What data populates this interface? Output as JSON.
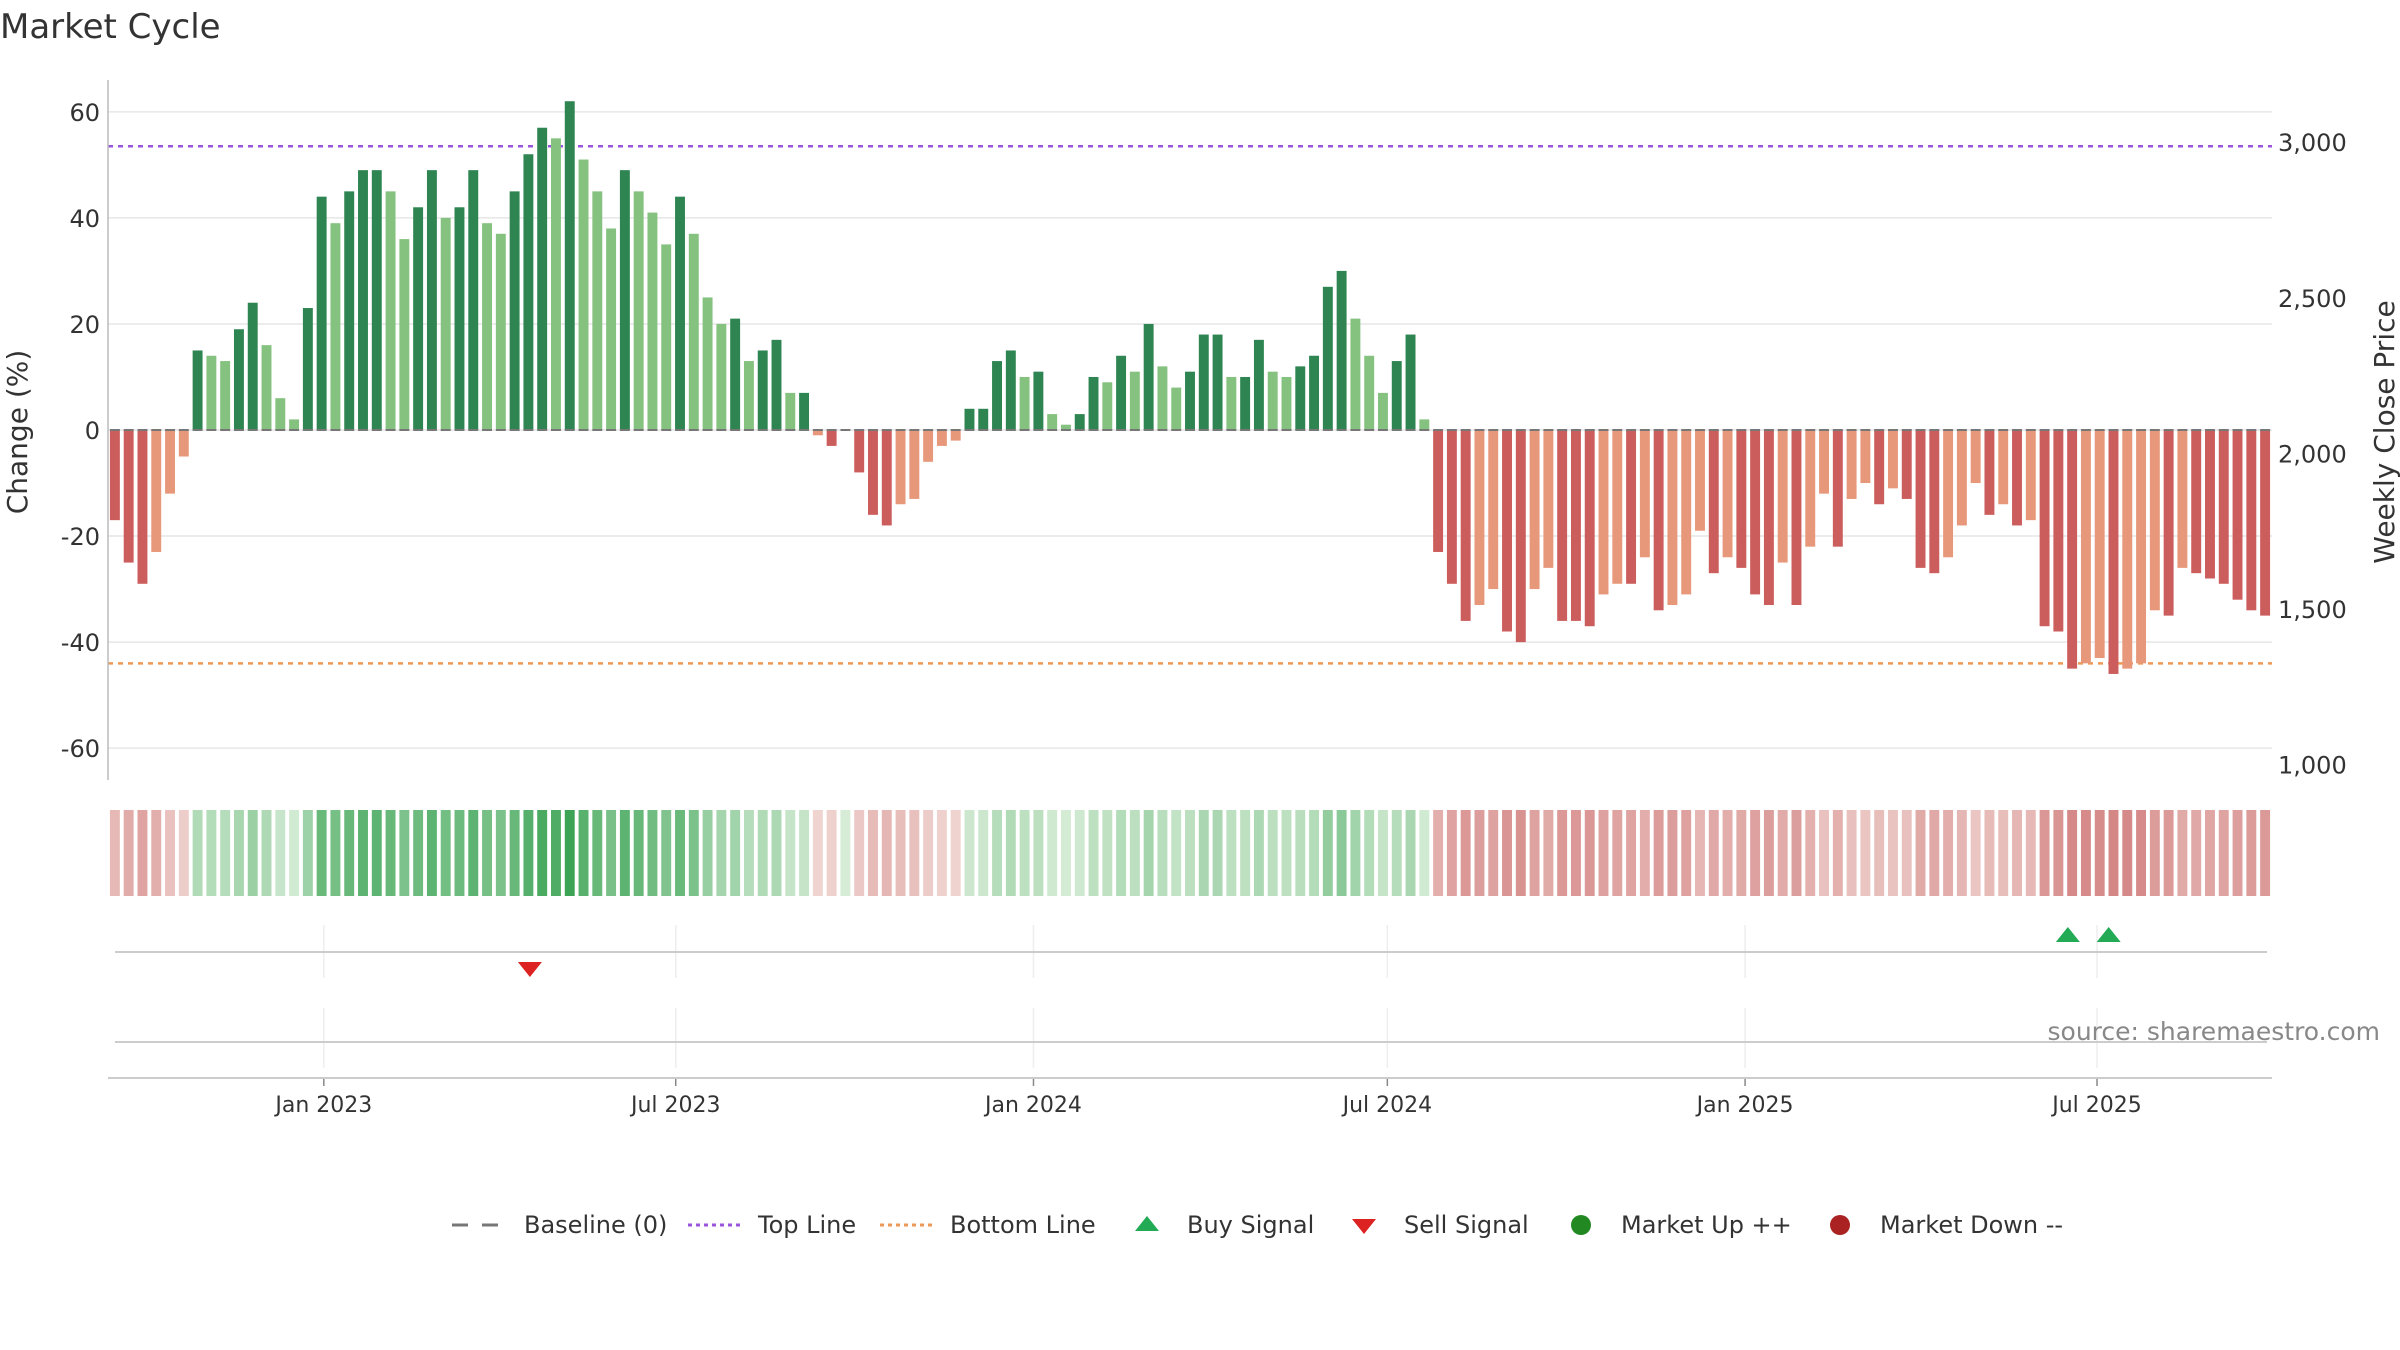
{
  "chart_data": {
    "type": "bar",
    "title": "Market Cycle",
    "ylabel": "Change (%)",
    "y2label": "Weekly Close Price",
    "ylim": [
      -66,
      66
    ],
    "y2lim": [
      950,
      3200
    ],
    "yticks": [
      -60,
      -40,
      -20,
      0,
      20,
      40,
      60
    ],
    "y2ticks": [
      1000,
      1500,
      2000,
      2500,
      3000
    ],
    "y2ticklabels": [
      "1,000",
      "1,500",
      "2,000",
      "2,500",
      "3,000"
    ],
    "x_start": "2022-09-12",
    "x_end": "2025-09-29",
    "week_days": 7,
    "xticks": [
      {
        "label": "Jan 2023",
        "date": "2023-01-01"
      },
      {
        "label": "Jul 2023",
        "date": "2023-07-01"
      },
      {
        "label": "Jan 2024",
        "date": "2024-01-01"
      },
      {
        "label": "Jul 2024",
        "date": "2024-07-01"
      },
      {
        "label": "Jan 2025",
        "date": "2025-01-01"
      },
      {
        "label": "Jul 2025",
        "date": "2025-07-01"
      }
    ],
    "values": [
      -17,
      -25,
      -29,
      -23,
      -12,
      -5,
      15,
      14,
      13,
      19,
      24,
      16,
      6,
      2,
      23,
      44,
      39,
      45,
      49,
      49,
      45,
      36,
      42,
      49,
      40,
      42,
      49,
      39,
      37,
      45,
      52,
      57,
      55,
      62,
      51,
      45,
      38,
      49,
      45,
      41,
      35,
      44,
      37,
      25,
      20,
      21,
      13,
      15,
      17,
      7,
      7,
      -1,
      -3,
      0,
      -8,
      -16,
      -18,
      -14,
      -13,
      -6,
      -3,
      -2,
      4,
      4,
      13,
      15,
      10,
      11,
      3,
      1,
      3,
      10,
      9,
      14,
      11,
      20,
      12,
      8,
      11,
      18,
      18,
      10,
      10,
      17,
      11,
      10,
      12,
      14,
      27,
      30,
      21,
      14,
      7,
      13,
      18,
      2,
      -23,
      -29,
      -36,
      -33,
      -30,
      -38,
      -40,
      -30,
      -26,
      -36,
      -36,
      -37,
      -31,
      -29,
      -29,
      -24,
      -34,
      -33,
      -31,
      -19,
      -27,
      -24,
      -26,
      -31,
      -33,
      -25,
      -33,
      -22,
      -12,
      -22,
      -13,
      -10,
      -14,
      -11,
      -13,
      -26,
      -27,
      -24,
      -18,
      -10,
      -16,
      -14,
      -18,
      -17,
      -37,
      -38,
      -45,
      -44,
      -43,
      -46,
      -45,
      -44,
      -34,
      -35,
      -26,
      -27,
      -28,
      -29,
      -32,
      -34,
      -35
    ],
    "top_line": 53.5,
    "bottom_line": -44,
    "buy_signals": [
      "2025-06-16",
      "2025-07-07"
    ],
    "sell_signals": [
      "2023-04-17"
    ],
    "legend": [
      {
        "label": "Baseline (0)",
        "symbol": "dash",
        "color": "#777777"
      },
      {
        "label": "Top Line",
        "symbol": "dotted",
        "color": "#9955dd"
      },
      {
        "label": "Bottom Line",
        "symbol": "dotted",
        "color": "#ee9955"
      },
      {
        "label": "Buy Signal",
        "symbol": "triangle-up",
        "color": "#22aa55"
      },
      {
        "label": "Sell Signal",
        "symbol": "triangle-down",
        "color": "#dd2222"
      },
      {
        "label": "Market Up ++",
        "symbol": "circle",
        "color": "#228822"
      },
      {
        "label": "Market Down --",
        "symbol": "circle",
        "color": "#aa2222"
      }
    ],
    "legend_position": "bottom-center",
    "grid": true
  },
  "source": "source: sharemaestro.com",
  "colors": {
    "bar_up_strong": "#2e8552",
    "bar_up_weak": "#85c27f",
    "bar_down_strong": "#cc5d5d",
    "bar_down_weak": "#e8987a",
    "top_line": "#9955dd",
    "bottom_line": "#ee9955",
    "grid": "#e6e6e6"
  }
}
